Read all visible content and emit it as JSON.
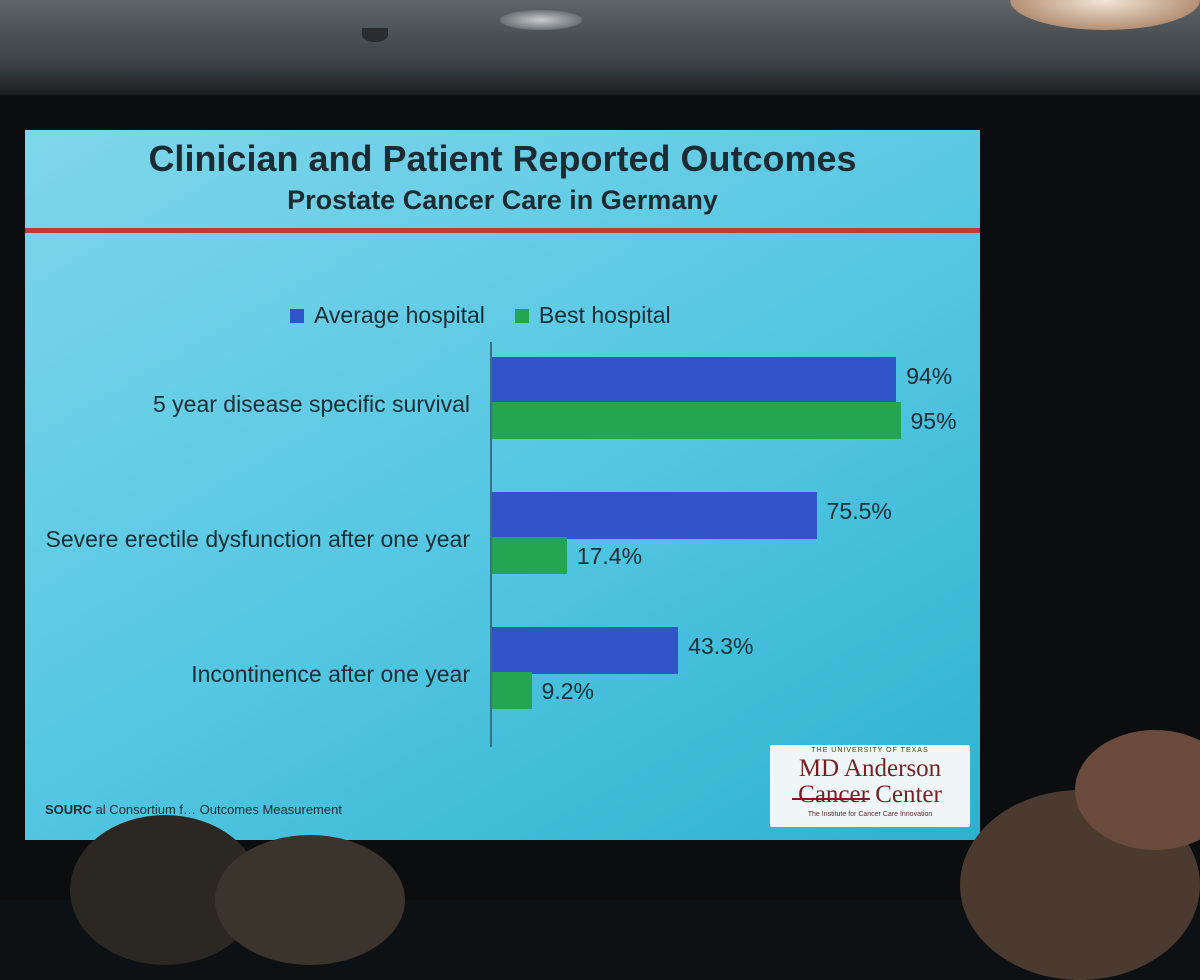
{
  "slide": {
    "title": "Clinician and Patient Reported Outcomes",
    "subtitle": "Prostate Cancer Care in Germany",
    "source_prefix": "SOURC",
    "source_text": "al Consortium f… Outcomes Measurement",
    "logo": {
      "small": "THE UNIVERSITY OF TEXAS",
      "line1": "MD Anderson",
      "line2": "Cancer Center",
      "tagline": "The Institute for Cancer Care Innovation"
    }
  },
  "chart_data": {
    "type": "bar",
    "orientation": "horizontal",
    "title": "Clinician and Patient Reported Outcomes",
    "subtitle": "Prostate Cancer Care in Germany",
    "legend_position": "top",
    "grid": false,
    "xlim": [
      0,
      100
    ],
    "categories": [
      "5 year disease specific survival",
      "Severe erectile dysfunction after one year",
      "Incontinence after one year"
    ],
    "series": [
      {
        "name": "Average hospital",
        "color": "#2f55c8",
        "values": [
          94,
          75.5,
          43.3
        ],
        "labels": [
          "94%",
          "75.5%",
          "43.3%"
        ]
      },
      {
        "name": "Best hospital",
        "color": "#23a552",
        "values": [
          95,
          17.4,
          9.2
        ],
        "labels": [
          "95%",
          "17.4%",
          "9.2%"
        ]
      }
    ]
  }
}
